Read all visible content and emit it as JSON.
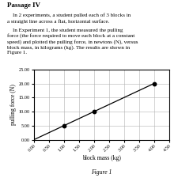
{
  "chart_data": {
    "type": "line",
    "title": "Figure 1",
    "xlabel": "block mass (kg)",
    "ylabel": "pulling force (N)",
    "annotations": [
      "Passage IV",
      "    In 2 experiments, a student pulled each of 3 blocks in\na straight line across a flat, horizontal surface.",
      "    In Experiment 1, the student measured the pulling\nforce (the force required to move each block at a constant\nspeed) and plotted the pulling force, in newtons (N), versus\nblock mass, in kilograms (kg). The results are shown in\nFigure 1."
    ],
    "series": [
      {
        "type": "line",
        "x": [
          0.0,
          4.0
        ],
        "values": [
          0.0,
          20.0
        ],
        "color": "#000000"
      },
      {
        "type": "scatter",
        "x": [
          1.0,
          2.0,
          4.0
        ],
        "values": [
          5.0,
          10.0,
          20.0
        ],
        "color": "#000000"
      }
    ],
    "xlim": [
      0.0,
      4.5
    ],
    "ylim": [
      0.0,
      25.0
    ],
    "xticks": [
      {
        "value": 0.0,
        "label": "0.00"
      },
      {
        "value": 0.5,
        "label": "0.50"
      },
      {
        "value": 1.0,
        "label": "1.00"
      },
      {
        "value": 1.5,
        "label": "1.50"
      },
      {
        "value": 2.0,
        "label": "2.00"
      },
      {
        "value": 2.5,
        "label": "2.50"
      },
      {
        "value": 3.0,
        "label": "3.00"
      },
      {
        "value": 3.5,
        "label": "3.50"
      },
      {
        "value": 4.0,
        "label": "4.00"
      },
      {
        "value": 4.5,
        "label": "4.50"
      }
    ],
    "yticks": [
      {
        "value": 0.0,
        "label": "0.00"
      },
      {
        "value": 5.0,
        "label": "5.00"
      },
      {
        "value": 10.0,
        "label": "10.00"
      },
      {
        "value": 15.0,
        "label": "15.00"
      },
      {
        "value": 20.0,
        "label": "20.00"
      },
      {
        "value": 25.0,
        "label": "25.00"
      }
    ],
    "grid": true
  }
}
